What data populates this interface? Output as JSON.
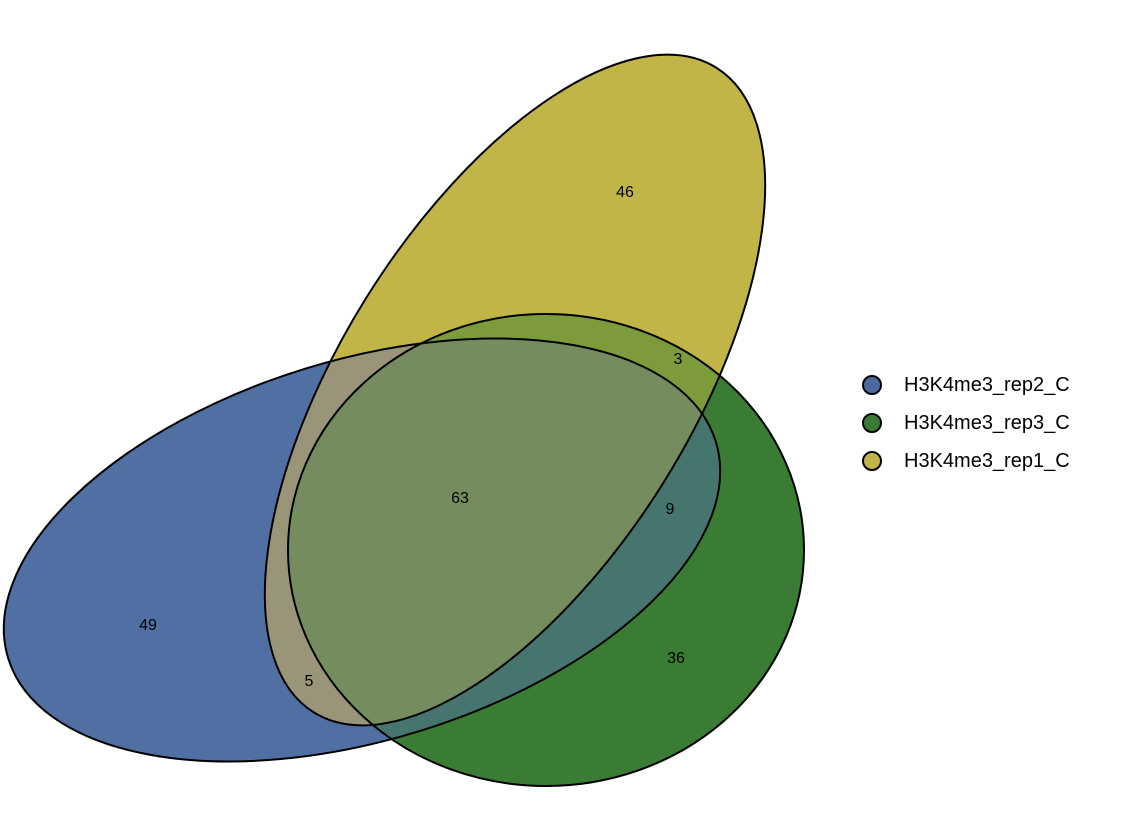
{
  "sets": [
    {
      "id": "rep2",
      "name": "H3K4me3_rep2_C",
      "color": "#4A6AA0"
    },
    {
      "id": "rep3",
      "name": "H3K4me3_rep3_C",
      "color": "#3A7C33"
    },
    {
      "id": "rep1",
      "name": "H3K4me3_rep1_C",
      "color": "#C1B548"
    }
  ],
  "regions": {
    "rep2_only": "49",
    "rep3_only": "36",
    "rep1_only": "46",
    "rep2_rep3": "9",
    "rep2_rep1": "5",
    "rep3_rep1": "3",
    "all_three": "63"
  },
  "legend": {
    "items": [
      {
        "label": "H3K4me3_rep2_C",
        "color": "#4A6AA0"
      },
      {
        "label": "H3K4me3_rep3_C",
        "color": "#3A7C33"
      },
      {
        "label": "H3K4me3_rep1_C",
        "color": "#C1B548"
      }
    ]
  }
}
